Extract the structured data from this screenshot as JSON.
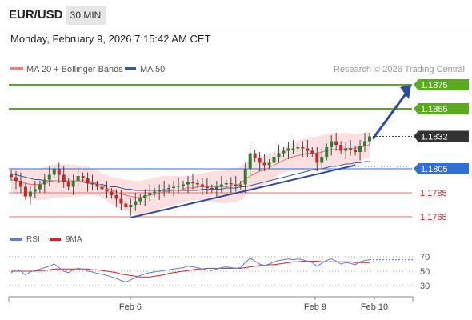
{
  "header": {
    "symbol": "EUR/USD",
    "timeframe": "30 MIN",
    "datetime": "Monday, February 9, 2026 7:15:42 AM CET"
  },
  "legend": {
    "ma20_label": "MA 20 + Bollinger Bands",
    "ma50_label": "MA 50",
    "source": "Research © 2026 Trading Central"
  },
  "colors": {
    "candle_up": "#2e7d32",
    "candle_down": "#c62828",
    "ma20": "#f08080",
    "ma50": "#3a5a9a",
    "band_fill": "#fbd5d5",
    "resistance": "#5aaa1e",
    "support": "#e57373",
    "pivot": "#2f6fd6",
    "trend": "#2c4aa0",
    "rsi": "#5b7be0",
    "rsi_ma": "#e02020"
  },
  "chart_data": [
    {
      "type": "candlestick",
      "instrument": "EUR/USD",
      "timeframe": "30 MIN",
      "x_tick_labels": [
        "Feb 6",
        "Feb 9",
        "Feb 10"
      ],
      "y_range": [
        1.1755,
        1.1885
      ],
      "levels": [
        {
          "value": 1.1875,
          "label": "1.1875",
          "kind": "resistance"
        },
        {
          "value": 1.1855,
          "label": "1.1855",
          "kind": "resistance"
        },
        {
          "value": 1.1832,
          "label": "1.1832",
          "kind": "last_price"
        },
        {
          "value": 1.1805,
          "label": "1.1805",
          "kind": "pivot"
        },
        {
          "value": 1.1785,
          "label": "1.1785",
          "kind": "support"
        },
        {
          "value": 1.1765,
          "label": "1.1765",
          "kind": "support"
        }
      ],
      "closes": [
        1.1798,
        1.1795,
        1.179,
        1.1782,
        1.1786,
        1.1788,
        1.1792,
        1.1796,
        1.18,
        1.1805,
        1.18,
        1.1794,
        1.179,
        1.1795,
        1.1799,
        1.1797,
        1.1793,
        1.1792,
        1.179,
        1.1788,
        1.1786,
        1.1783,
        1.178,
        1.1776,
        1.1773,
        1.1775,
        1.1778,
        1.1781,
        1.1783,
        1.1785,
        1.1786,
        1.1787,
        1.1788,
        1.1789,
        1.179,
        1.1791,
        1.1792,
        1.1794,
        1.1793,
        1.1792,
        1.179,
        1.1789,
        1.1788,
        1.179,
        1.1792,
        1.1793,
        1.1792,
        1.1791,
        1.1792,
        1.1805,
        1.1818,
        1.1814,
        1.181,
        1.1808,
        1.181,
        1.1815,
        1.1818,
        1.182,
        1.1822,
        1.1822,
        1.1823,
        1.1822,
        1.182,
        1.1818,
        1.181,
        1.1815,
        1.1823,
        1.1828,
        1.1825,
        1.182,
        1.1822,
        1.1821,
        1.1819,
        1.1824,
        1.1828,
        1.1832
      ],
      "ma20": [
        1.1796,
        1.1795,
        1.1794,
        1.1793,
        1.1792,
        1.1792,
        1.1792,
        1.1793,
        1.1794,
        1.1795,
        1.1795,
        1.1795,
        1.1795,
        1.1795,
        1.1795,
        1.1795,
        1.1795,
        1.1794,
        1.1793,
        1.1791,
        1.1789,
        1.1787,
        1.1786,
        1.1784,
        1.1783,
        1.1782,
        1.1781,
        1.1781,
        1.1782,
        1.1783,
        1.1784,
        1.1785,
        1.1786,
        1.1786,
        1.1787,
        1.1787,
        1.1788,
        1.1789,
        1.1789,
        1.179,
        1.179,
        1.179,
        1.179,
        1.179,
        1.179,
        1.179,
        1.1791,
        1.1791,
        1.1793,
        1.1796,
        1.1799,
        1.1801,
        1.1803,
        1.1804,
        1.1806,
        1.1808,
        1.181,
        1.1812,
        1.1814,
        1.1815,
        1.1816,
        1.1817,
        1.1818,
        1.1818,
        1.1818,
        1.1819,
        1.182,
        1.1821,
        1.1821,
        1.1821,
        1.1822,
        1.1822,
        1.1822,
        1.1823,
        1.1824,
        1.1825
      ],
      "ma50": [
        1.1801,
        1.18,
        1.1799,
        1.1798,
        1.1797,
        1.1796,
        1.1796,
        1.1795,
        1.1795,
        1.1795,
        1.1795,
        1.1795,
        1.1794,
        1.1794,
        1.1794,
        1.1794,
        1.1793,
        1.1793,
        1.1792,
        1.1792,
        1.1791,
        1.179,
        1.179,
        1.1789,
        1.1788,
        1.1788,
        1.1787,
        1.1787,
        1.1787,
        1.1787,
        1.1787,
        1.1787,
        1.1787,
        1.1787,
        1.1787,
        1.1787,
        1.1787,
        1.1787,
        1.1787,
        1.1787,
        1.1788,
        1.1788,
        1.1788,
        1.1788,
        1.1788,
        1.1789,
        1.1789,
        1.1789,
        1.179,
        1.179,
        1.1791,
        1.1792,
        1.1793,
        1.1794,
        1.1795,
        1.1796,
        1.1797,
        1.1798,
        1.1799,
        1.18,
        1.1801,
        1.1802,
        1.1803,
        1.1804,
        1.1805,
        1.1805,
        1.1806,
        1.1807,
        1.1807,
        1.1808,
        1.1809,
        1.1809,
        1.181,
        1.181,
        1.1811,
        1.1811
      ]
    },
    {
      "type": "line",
      "name": "RSI",
      "legend": [
        "RSI",
        "9MA"
      ],
      "y_ticks": [
        70,
        50,
        30
      ],
      "rsi": [
        48,
        52,
        50,
        45,
        49,
        51,
        53,
        55,
        57,
        60,
        55,
        50,
        48,
        52,
        54,
        53,
        50,
        49,
        47,
        46,
        44,
        42,
        40,
        37,
        35,
        38,
        41,
        44,
        46,
        48,
        49,
        50,
        51,
        52,
        53,
        54,
        55,
        57,
        56,
        55,
        53,
        52,
        51,
        53,
        55,
        56,
        55,
        54,
        55,
        62,
        68,
        64,
        60,
        58,
        60,
        63,
        65,
        66,
        67,
        66,
        67,
        66,
        64,
        62,
        57,
        61,
        65,
        67,
        64,
        60,
        62,
        61,
        59,
        63,
        65,
        66
      ],
      "ma": [
        50,
        50,
        50,
        50,
        50,
        50,
        51,
        51,
        52,
        53,
        53,
        53,
        53,
        53,
        53,
        53,
        53,
        52,
        52,
        51,
        50,
        49,
        48,
        46,
        45,
        44,
        43,
        42,
        42,
        42,
        43,
        44,
        45,
        47,
        48,
        49,
        50,
        51,
        52,
        53,
        53,
        54,
        54,
        54,
        54,
        54,
        54,
        54,
        54,
        55,
        56,
        57,
        58,
        58,
        59,
        59,
        60,
        61,
        62,
        63,
        63,
        64,
        64,
        64,
        64,
        63,
        63,
        63,
        63,
        63,
        63,
        63,
        62,
        62,
        62,
        62
      ]
    }
  ]
}
